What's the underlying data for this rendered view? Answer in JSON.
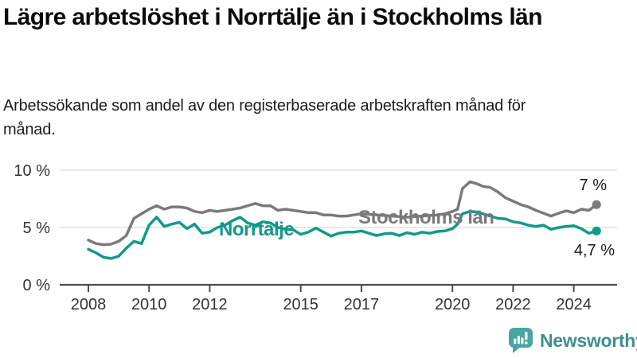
{
  "header": {
    "title": "Lägre arbetslöshet i Norrtälje än i Stockholms län",
    "subtitle": "Arbetssökande som andel av den registerbaserade arbetskraften månad för månad."
  },
  "footer": {
    "brand": "Newsworthy",
    "logo_icon": "bar-chart-speech-bubble"
  },
  "colors": {
    "norrtalje_teal": "#13998b",
    "stockholm_gray": "#7a7a7e",
    "gridline": "#d9d9d9",
    "axis": "#4d4d4d",
    "tick_label": "#333333",
    "annotation": "#1a1a1a",
    "logo_teal": "#4aa5a0",
    "title_text": "#0b0b0b"
  },
  "chart_data": {
    "type": "line",
    "title": "Lägre arbetslöshet i Norrtälje än i Stockholms län",
    "subtitle": "Arbetssökande som andel av den registerbaserade arbetskraften månad för månad.",
    "xlabel": "",
    "ylabel": "",
    "grid": "horizontal",
    "legend_position": "inline-labels",
    "ylim": [
      0,
      10
    ],
    "xlim": [
      2007.1,
      2025.4
    ],
    "y_ticks": [
      {
        "value": 0,
        "label": "0 %"
      },
      {
        "value": 5,
        "label": "5 %"
      },
      {
        "value": 10,
        "label": "10 %"
      }
    ],
    "x_ticks": [
      2008,
      2010,
      2012,
      2015,
      2017,
      2020,
      2022,
      2024
    ],
    "x": [
      2008,
      2008.25,
      2008.5,
      2008.75,
      2009,
      2009.25,
      2009.5,
      2009.75,
      2010,
      2010.25,
      2010.5,
      2010.75,
      2011,
      2011.25,
      2011.5,
      2011.75,
      2012,
      2012.25,
      2012.5,
      2012.75,
      2013,
      2013.25,
      2013.5,
      2013.75,
      2014,
      2014.25,
      2014.5,
      2014.75,
      2015,
      2015.25,
      2015.5,
      2015.75,
      2016,
      2016.25,
      2016.5,
      2016.75,
      2017,
      2017.25,
      2017.5,
      2017.75,
      2018,
      2018.25,
      2018.5,
      2018.75,
      2019,
      2019.25,
      2019.5,
      2019.75,
      2020,
      2020.17,
      2020.33,
      2020.58,
      2020.83,
      2021,
      2021.25,
      2021.5,
      2021.75,
      2022,
      2022.25,
      2022.5,
      2022.75,
      2023,
      2023.25,
      2023.5,
      2023.75,
      2024,
      2024.25,
      2024.5,
      2024.75
    ],
    "series": [
      {
        "name": "Stockholms län",
        "color": "#7a7a7e",
        "end_label": "7 %",
        "end_value": 7.0,
        "values": [
          3.9,
          3.6,
          3.5,
          3.55,
          3.8,
          4.3,
          5.8,
          6.2,
          6.6,
          6.9,
          6.6,
          6.8,
          6.8,
          6.7,
          6.4,
          6.3,
          6.5,
          6.4,
          6.5,
          6.6,
          6.7,
          6.9,
          7.1,
          6.9,
          6.9,
          6.5,
          6.6,
          6.5,
          6.4,
          6.3,
          6.3,
          6.1,
          6.1,
          6.0,
          6.0,
          6.1,
          6.2,
          6.15,
          6.1,
          6.05,
          6.0,
          5.95,
          5.9,
          5.95,
          6.0,
          6.05,
          6.1,
          6.2,
          6.4,
          6.6,
          8.4,
          9.0,
          8.8,
          8.6,
          8.5,
          8.1,
          7.6,
          7.3,
          7.0,
          6.8,
          6.5,
          6.25,
          6.0,
          6.25,
          6.45,
          6.3,
          6.6,
          6.5,
          7.0
        ]
      },
      {
        "name": "Norrtälje",
        "color": "#13998b",
        "end_label": "4,7 %",
        "end_value": 4.7,
        "values": [
          3.1,
          2.8,
          2.4,
          2.3,
          2.5,
          3.2,
          3.8,
          3.6,
          5.2,
          5.9,
          5.1,
          5.3,
          5.45,
          4.9,
          5.3,
          4.5,
          4.6,
          5.0,
          5.2,
          5.6,
          5.9,
          5.4,
          5.2,
          5.5,
          5.4,
          5.0,
          4.85,
          4.8,
          4.4,
          4.6,
          4.95,
          4.6,
          4.25,
          4.5,
          4.6,
          4.6,
          4.7,
          4.5,
          4.3,
          4.45,
          4.5,
          4.3,
          4.55,
          4.4,
          4.6,
          4.5,
          4.65,
          4.7,
          4.9,
          5.3,
          6.2,
          6.4,
          6.35,
          6.2,
          6.0,
          5.8,
          5.75,
          5.5,
          5.4,
          5.2,
          5.1,
          5.2,
          4.85,
          5.0,
          5.1,
          5.15,
          4.9,
          4.5,
          4.7
        ]
      }
    ]
  }
}
